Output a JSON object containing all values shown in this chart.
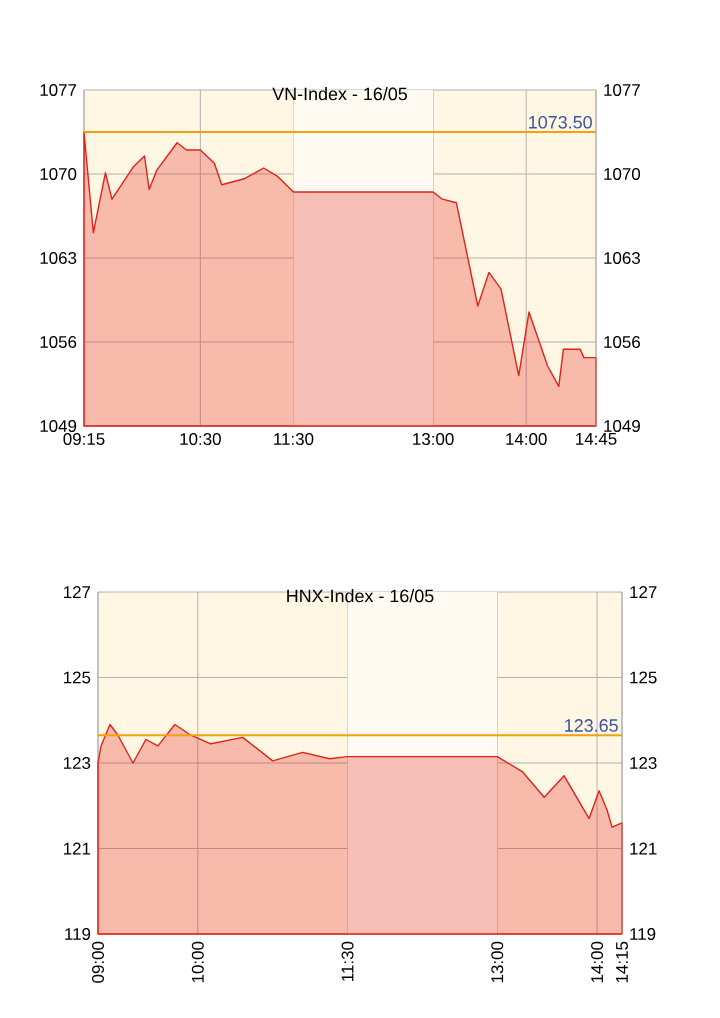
{
  "chart_data": [
    {
      "type": "area",
      "title": "VN-Index - 16/05",
      "grid": true,
      "x": [
        9.25,
        9.35,
        9.48,
        9.55,
        9.78,
        9.9,
        9.95,
        10.03,
        10.25,
        10.35,
        10.5,
        10.65,
        10.73,
        10.97,
        11.18,
        11.33,
        11.5,
        13.0,
        13.1,
        13.25,
        13.48,
        13.6,
        13.73,
        13.92,
        14.03,
        14.23,
        14.35,
        14.4,
        14.58,
        14.62,
        14.75
      ],
      "series": [
        {
          "color": "#e32119",
          "values": [
            1073.5,
            1065.1,
            1070.1,
            1067.9,
            1070.6,
            1071.5,
            1068.7,
            1070.3,
            1072.6,
            1072.0,
            1072.0,
            1070.9,
            1069.1,
            1069.6,
            1070.5,
            1069.8,
            1068.5,
            1068.5,
            1067.9,
            1067.6,
            1059.0,
            1061.8,
            1060.4,
            1053.2,
            1058.5,
            1054.0,
            1052.3,
            1055.4,
            1055.4,
            1054.7,
            1054.7
          ]
        }
      ],
      "xlim": [
        9.25,
        14.75
      ],
      "xticks": [
        {
          "value": 9.25,
          "label": "09:15"
        },
        {
          "value": 10.5,
          "label": "10:30"
        },
        {
          "value": 11.5,
          "label": "11:30"
        },
        {
          "value": 13,
          "label": "13:00"
        },
        {
          "value": 14,
          "label": "14:00"
        },
        {
          "value": 14.75,
          "label": "14:45"
        }
      ],
      "ylim": [
        1049,
        1077
      ],
      "yticks": [
        1049,
        1056,
        1063,
        1070,
        1077
      ],
      "y2lim": [
        1049,
        1077
      ],
      "y2ticks": [
        1049,
        1056,
        1063,
        1070,
        1077
      ],
      "ref_lines": [
        {
          "axis": "y",
          "value": 1073.5,
          "label": "1073.50",
          "color": "#f0a010"
        }
      ],
      "bands": [
        {
          "axis": "x",
          "from": 11.5,
          "to": 13,
          "color": "#fffbf2"
        }
      ]
    },
    {
      "type": "area",
      "title": "HNX-Index - 16/05",
      "grid": true,
      "x": [
        9.0,
        9.03,
        9.12,
        9.2,
        9.35,
        9.48,
        9.6,
        9.77,
        9.93,
        10.13,
        10.45,
        10.75,
        11.05,
        11.32,
        11.5,
        13.0,
        13.25,
        13.47,
        13.67,
        13.92,
        14.02,
        14.1,
        14.15,
        14.25
      ],
      "series": [
        {
          "color": "#e32119",
          "values": [
            123.0,
            123.4,
            123.9,
            123.65,
            123.0,
            123.55,
            123.4,
            123.9,
            123.65,
            123.45,
            123.6,
            123.05,
            123.25,
            123.1,
            123.15,
            123.15,
            122.8,
            122.2,
            122.7,
            121.7,
            122.35,
            121.9,
            121.5,
            121.6
          ]
        }
      ],
      "xlim": [
        9,
        14.25
      ],
      "xticks": [
        {
          "value": 9,
          "label": "09:00"
        },
        {
          "value": 10,
          "label": "10:00"
        },
        {
          "value": 11.5,
          "label": "11:30"
        },
        {
          "value": 13,
          "label": "13:00"
        },
        {
          "value": 14,
          "label": "14:00"
        },
        {
          "value": 14.25,
          "label": "14:15"
        }
      ],
      "ylim": [
        119,
        127
      ],
      "yticks": [
        119,
        121,
        123,
        125,
        127
      ],
      "y2lim": [
        119,
        127
      ],
      "y2ticks": [
        119,
        121,
        123,
        125,
        127
      ],
      "ref_lines": [
        {
          "axis": "y",
          "value": 123.65,
          "label": "123.65",
          "color": "#f0a010"
        }
      ],
      "bands": [
        {
          "axis": "x",
          "from": 11.5,
          "to": 13,
          "color": "#fffbf2"
        }
      ]
    }
  ]
}
